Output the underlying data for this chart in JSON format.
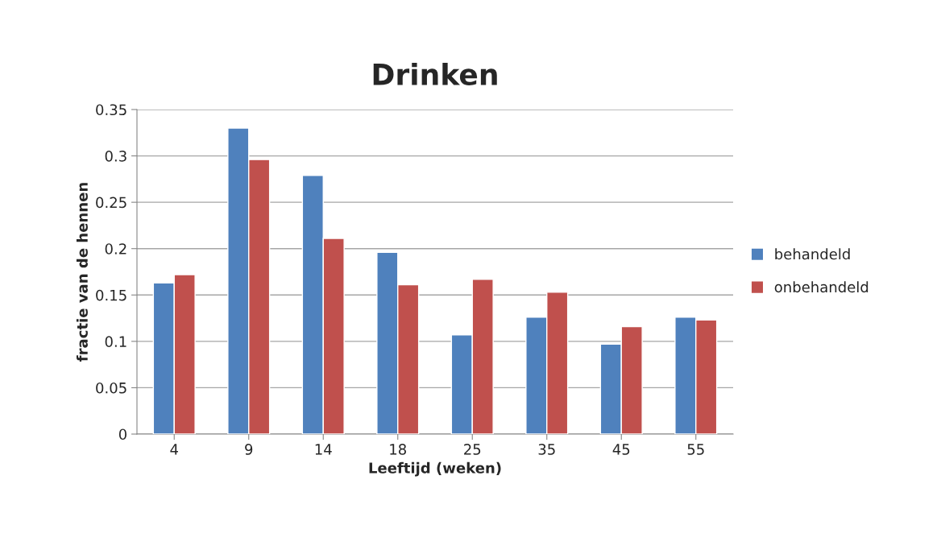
{
  "chart_data": {
    "type": "bar",
    "title": "Drinken",
    "xlabel": "Leeftijd (weken)",
    "ylabel": "fractie van de hennen",
    "categories": [
      "4",
      "9",
      "14",
      "18",
      "25",
      "35",
      "45",
      "55"
    ],
    "series": [
      {
        "name": "behandeld",
        "color": "#4f81bd",
        "values": [
          0.163,
          0.33,
          0.279,
          0.196,
          0.107,
          0.126,
          0.097,
          0.126
        ]
      },
      {
        "name": "onbehandeld",
        "color": "#c0504d",
        "values": [
          0.172,
          0.296,
          0.211,
          0.161,
          0.167,
          0.153,
          0.116,
          0.123
        ]
      }
    ],
    "ylim": [
      0,
      0.35
    ],
    "yticks": [
      0,
      0.05,
      0.1,
      0.15,
      0.2,
      0.25,
      0.3,
      0.35
    ],
    "grid": "y",
    "legend": "right"
  }
}
